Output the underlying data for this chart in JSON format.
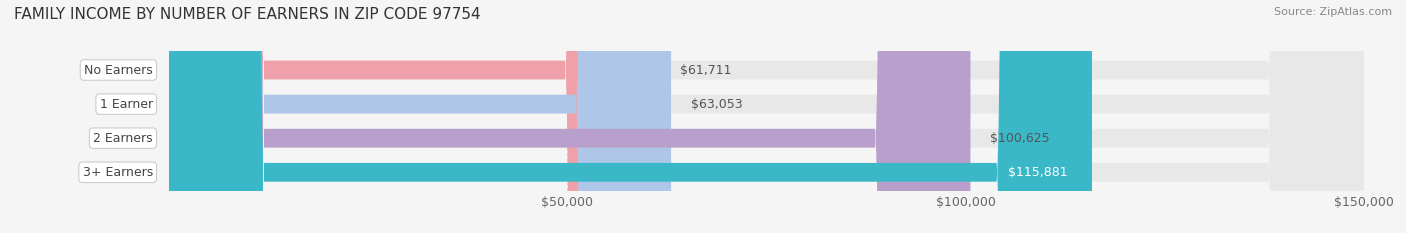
{
  "title": "FAMILY INCOME BY NUMBER OF EARNERS IN ZIP CODE 97754",
  "source": "Source: ZipAtlas.com",
  "categories": [
    "No Earners",
    "1 Earner",
    "2 Earners",
    "3+ Earners"
  ],
  "values": [
    61711,
    63053,
    100625,
    115881
  ],
  "labels": [
    "$61,711",
    "$63,053",
    "$100,625",
    "$115,881"
  ],
  "bar_colors": [
    "#f0a0a8",
    "#aec6e8",
    "#b9a0cc",
    "#3ab8c8"
  ],
  "label_colors": [
    "#555555",
    "#555555",
    "#555555",
    "#ffffff"
  ],
  "background_color": "#f5f5f5",
  "bar_bg_color": "#e8e8e8",
  "xlim": [
    0,
    150000
  ],
  "xticks": [
    50000,
    100000,
    150000
  ],
  "xticklabels": [
    "$50,000",
    "$100,000",
    "$150,000"
  ],
  "title_fontsize": 11,
  "source_fontsize": 8,
  "label_fontsize": 9,
  "tick_fontsize": 9,
  "category_fontsize": 9,
  "bar_height": 0.55
}
